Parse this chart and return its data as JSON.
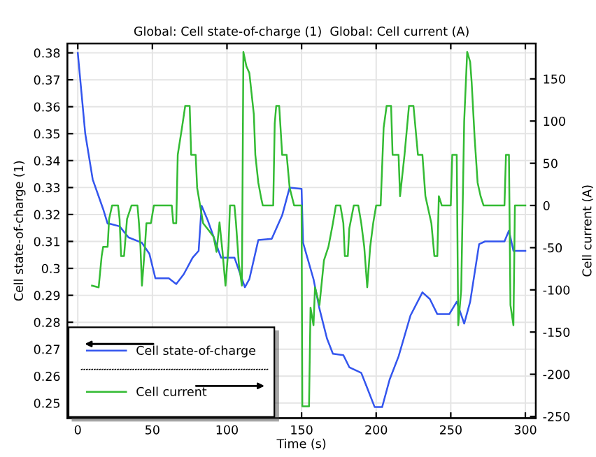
{
  "chart_data": {
    "type": "line",
    "title": "Global: Cell state-of-charge (1)  Global: Cell current (A)",
    "xlabel": "Time (s)",
    "ylabel": "Cell state-of-charge (1)",
    "y2label": "Cell current (A)",
    "xlim": [
      -7,
      307
    ],
    "xticks": [
      0,
      50,
      100,
      150,
      200,
      250,
      300
    ],
    "ylim": [
      0.2444,
      0.3835
    ],
    "yticks": [
      {
        "value": 0.25,
        "label": "0.25"
      },
      {
        "value": 0.26,
        "label": "0.26"
      },
      {
        "value": 0.27,
        "label": "0.27"
      },
      {
        "value": 0.28,
        "label": "0.28"
      },
      {
        "value": 0.29,
        "label": "0.29"
      },
      {
        "value": 0.3,
        "label": "0.3"
      },
      {
        "value": 0.31,
        "label": "0.31"
      },
      {
        "value": 0.32,
        "label": "0.32"
      },
      {
        "value": 0.33,
        "label": "0.33"
      },
      {
        "value": 0.34,
        "label": "0.34"
      },
      {
        "value": 0.35,
        "label": "0.35"
      },
      {
        "value": 0.36,
        "label": "0.36"
      },
      {
        "value": 0.37,
        "label": "0.37"
      },
      {
        "value": 0.38,
        "label": "0.38"
      }
    ],
    "y2lim": [
      -252,
      192
    ],
    "y2ticks": [
      {
        "value": -250,
        "label": "-250"
      },
      {
        "value": -200,
        "label": "-200"
      },
      {
        "value": -150,
        "label": "-150"
      },
      {
        "value": -100,
        "label": "-100"
      },
      {
        "value": -50,
        "label": "-50"
      },
      0,
      50,
      100,
      150
    ],
    "grid": true,
    "legend": "bottom left",
    "marker": "none",
    "line_style": "solid",
    "series": [
      {
        "name": "Cell state-of-charge",
        "color": "#3355ee",
        "x": [
          0,
          5,
          10,
          17,
          20,
          22,
          28,
          34,
          43,
          48,
          52,
          61,
          66,
          71,
          77,
          81,
          83,
          87,
          96,
          105,
          112,
          115,
          121,
          130,
          137,
          142,
          150,
          151,
          158,
          162,
          167,
          171,
          178,
          182,
          190,
          194,
          199,
          204,
          209,
          215,
          223,
          231,
          236,
          241,
          249,
          254,
          259,
          263,
          269,
          273,
          286,
          289,
          292,
          300
        ],
        "values": [
          0.38,
          0.35,
          0.333,
          0.322,
          0.3166,
          0.3165,
          0.3156,
          0.3115,
          0.3095,
          0.3054,
          0.2963,
          0.2963,
          0.2942,
          0.2978,
          0.304,
          0.3065,
          0.3232,
          0.318,
          0.304,
          0.304,
          0.293,
          0.296,
          0.3105,
          0.311,
          0.3197,
          0.33,
          0.3295,
          0.3095,
          0.296,
          0.285,
          0.274,
          0.2683,
          0.2678,
          0.2633,
          0.2612,
          0.2556,
          0.2485,
          0.2485,
          0.2587,
          0.2673,
          0.2825,
          0.2911,
          0.2886,
          0.283,
          0.283,
          0.2876,
          0.2795,
          0.2876,
          0.309,
          0.31,
          0.31,
          0.314,
          0.3065,
          0.3065
        ]
      },
      {
        "name": "Cell current",
        "color": "#33bb33",
        "axis": "y2",
        "x": [
          9.5,
          14,
          16,
          17,
          20,
          21,
          23,
          27,
          28,
          29,
          31,
          33,
          36,
          40,
          41,
          42,
          43,
          45,
          46,
          49,
          51,
          63,
          64,
          66,
          67,
          70,
          72,
          75,
          76,
          79,
          80,
          82,
          84,
          88,
          91,
          93,
          95,
          97,
          99,
          101,
          102,
          105,
          106,
          108,
          110,
          111,
          113,
          115,
          118,
          119,
          121,
          123,
          124,
          131,
          132,
          133,
          135,
          137,
          140,
          142,
          145,
          150,
          150.5,
          155,
          156,
          158,
          159,
          162,
          165,
          168,
          171,
          173,
          176,
          178,
          179,
          181,
          182,
          185,
          188,
          190,
          192,
          194,
          196,
          198,
          200,
          203,
          205,
          207,
          210,
          211,
          215,
          216,
          219,
          222,
          225,
          228,
          231,
          233,
          237,
          239,
          241,
          242,
          244,
          250,
          251,
          254,
          255,
          257,
          259,
          261,
          263,
          264,
          266,
          268,
          270,
          272,
          286,
          287,
          289,
          290,
          292,
          293,
          300
        ],
        "values": [
          -95,
          -97,
          -60,
          -49,
          -49,
          -16,
          0,
          0,
          -16,
          -60,
          -60,
          -16,
          0,
          0,
          -21,
          -49,
          -95,
          -49,
          -21,
          -21,
          0,
          0,
          -21,
          -21,
          60,
          94,
          118,
          118,
          60,
          60,
          21,
          0,
          -21,
          -30,
          -37,
          -55,
          -20,
          -55,
          -95,
          -50,
          0,
          0,
          -20,
          -70,
          -95,
          182,
          165,
          157,
          108,
          60,
          27,
          8,
          0,
          0,
          97,
          118,
          118,
          60,
          60,
          21,
          0,
          0,
          -238,
          -238,
          -121,
          -142,
          -97,
          -118,
          -65,
          -49,
          -21,
          0,
          0,
          -21,
          -60,
          -60,
          -27,
          0,
          0,
          -21,
          -49,
          -97,
          -49,
          -21,
          0,
          0,
          92,
          118,
          118,
          60,
          60,
          11,
          60,
          118,
          118,
          60,
          60,
          11,
          -21,
          -60,
          -60,
          11,
          0,
          0,
          60,
          60,
          -142,
          -100,
          100,
          182,
          170,
          146,
          80,
          27,
          11,
          0,
          0,
          60,
          60,
          -118,
          -142,
          0,
          0
        ]
      }
    ]
  }
}
